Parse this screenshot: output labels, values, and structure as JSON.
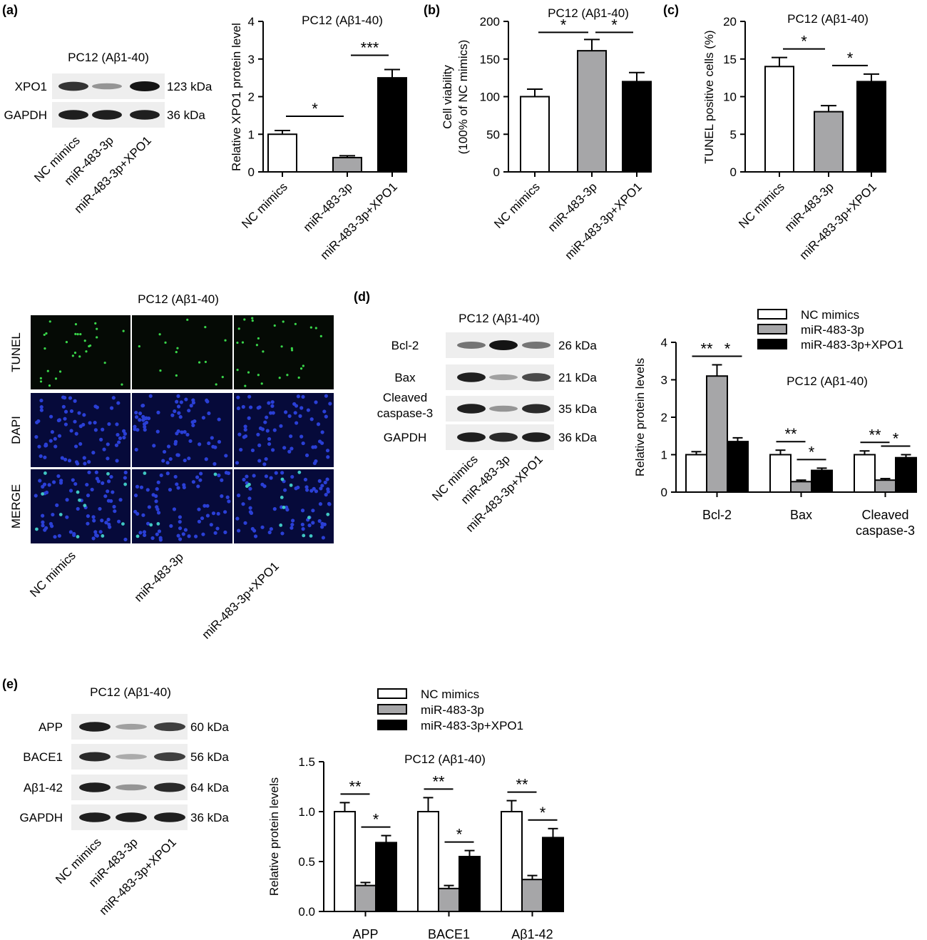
{
  "panels": {
    "a": "(a)",
    "b": "(b)",
    "c": "(c)",
    "d": "(d)",
    "e": "(e)"
  },
  "cell_line": "PC12 (Aβ1-40)",
  "groups": [
    "NC mimics",
    "miR-483-3p",
    "miR-483-3p+XPO1"
  ],
  "blot_a": {
    "rows": [
      {
        "label": "XPO1",
        "size": "123 kDa",
        "intensity": [
          0.85,
          0.4,
          1.0
        ]
      },
      {
        "label": "GAPDH",
        "size": "36 kDa",
        "intensity": [
          0.95,
          0.95,
          0.95
        ]
      }
    ]
  },
  "blot_d": {
    "rows": [
      {
        "label": "Bcl-2",
        "size": "26 kDa",
        "intensity": [
          0.55,
          1.0,
          0.55
        ]
      },
      {
        "label": "Bax",
        "size": "21 kDa",
        "intensity": [
          0.95,
          0.35,
          0.75
        ]
      },
      {
        "label": "Cleaved caspase-3",
        "label_lines": [
          "Cleaved",
          "caspase-3"
        ],
        "size": "35 kDa",
        "intensity": [
          0.95,
          0.4,
          0.9
        ]
      },
      {
        "label": "GAPDH",
        "size": "36 kDa",
        "intensity": [
          0.95,
          0.9,
          0.95
        ]
      }
    ]
  },
  "blot_e": {
    "rows": [
      {
        "label": "APP",
        "size": "60 kDa",
        "intensity": [
          0.95,
          0.35,
          0.8
        ]
      },
      {
        "label": "BACE1",
        "size": "56 kDa",
        "intensity": [
          0.9,
          0.3,
          0.8
        ]
      },
      {
        "label": "Aβ1-42",
        "size": "64 kDa",
        "intensity": [
          0.95,
          0.4,
          0.9
        ]
      },
      {
        "label": "GAPDH",
        "size": "36 kDa",
        "intensity": [
          0.95,
          0.95,
          0.95
        ]
      }
    ]
  },
  "microscopy": {
    "title": "PC12 (Aβ1-40)",
    "rows": [
      "TUNEL",
      "DAPI",
      "MERGE"
    ],
    "columns": [
      "NC mimics",
      "miR-483-3p",
      "miR-483-3p+XPO1"
    ]
  },
  "colors": {
    "nc": "#ffffff",
    "mir": "#a6a6a8",
    "xpo": "#000000"
  },
  "chart_data": [
    {
      "id": "a",
      "type": "bar",
      "title": "PC12 (Aβ1-40)",
      "ylabel": "Relative XPO1 protein level",
      "categories": [
        "NC mimics",
        "miR-483-3p",
        "miR-483-3p+XPO1"
      ],
      "values": [
        1.0,
        0.38,
        2.5
      ],
      "errors": [
        0.1,
        0.05,
        0.22
      ],
      "ylim": [
        0,
        4
      ],
      "yticks": [
        0,
        1,
        2,
        3,
        4
      ],
      "significance": [
        {
          "from": 0,
          "to": 1,
          "label": "*"
        },
        {
          "from": 1,
          "to": 2,
          "label": "***"
        }
      ]
    },
    {
      "id": "b",
      "type": "bar",
      "title": "PC12 (Aβ1-40)",
      "ylabel_lines": [
        "Cell viability",
        "(100% of NC mimics)"
      ],
      "categories": [
        "NC mimics",
        "miR-483-3p",
        "miR-483-3p+XPO1"
      ],
      "values": [
        100,
        161,
        120
      ],
      "errors": [
        10,
        15,
        12
      ],
      "ylim": [
        0,
        200
      ],
      "yticks": [
        0,
        50,
        100,
        150,
        200
      ],
      "significance": [
        {
          "from": 0,
          "to": 1,
          "label": "*"
        },
        {
          "from": 1,
          "to": 2,
          "label": "*"
        }
      ]
    },
    {
      "id": "c",
      "type": "bar",
      "title": "PC12 (Aβ1-40)",
      "ylabel": "TUNEL positive cells (%)",
      "categories": [
        "NC mimics",
        "miR-483-3p",
        "miR-483-3p+XPO1"
      ],
      "values": [
        14,
        8,
        12
      ],
      "errors": [
        1.2,
        0.8,
        1.0
      ],
      "ylim": [
        0,
        20
      ],
      "yticks": [
        0,
        5,
        10,
        15,
        20
      ],
      "significance": [
        {
          "from": 0,
          "to": 1,
          "label": "*"
        },
        {
          "from": 1,
          "to": 2,
          "label": "*"
        }
      ]
    },
    {
      "id": "d",
      "type": "bar",
      "title": "PC12 (Aβ1-40)",
      "ylabel": "Relative protein levels",
      "categories": [
        "Bcl-2",
        "Bax",
        "Cleaved caspase-3"
      ],
      "category_lines": [
        [
          "Bcl-2"
        ],
        [
          "Bax"
        ],
        [
          "Cleaved",
          "caspase-3"
        ]
      ],
      "series": [
        {
          "name": "NC mimics",
          "values": [
            1.0,
            1.0,
            1.0
          ],
          "errors": [
            0.08,
            0.12,
            0.1
          ]
        },
        {
          "name": "miR-483-3p",
          "values": [
            3.1,
            0.28,
            0.32
          ],
          "errors": [
            0.3,
            0.04,
            0.04
          ]
        },
        {
          "name": "miR-483-3p+XPO1",
          "values": [
            1.35,
            0.58,
            0.92
          ],
          "errors": [
            0.1,
            0.06,
            0.08
          ]
        }
      ],
      "ylim": [
        0,
        4
      ],
      "yticks": [
        0,
        1,
        2,
        3,
        4
      ],
      "significance": [
        {
          "cat": 0,
          "from": 0,
          "to": 1,
          "label": "**"
        },
        {
          "cat": 0,
          "from": 1,
          "to": 2,
          "label": "*"
        },
        {
          "cat": 1,
          "from": 0,
          "to": 1,
          "label": "**"
        },
        {
          "cat": 1,
          "from": 1,
          "to": 2,
          "label": "*"
        },
        {
          "cat": 2,
          "from": 0,
          "to": 1,
          "label": "**"
        },
        {
          "cat": 2,
          "from": 1,
          "to": 2,
          "label": "*"
        }
      ],
      "legend": "top-right"
    },
    {
      "id": "e",
      "type": "bar",
      "title": "PC12 (Aβ1-40)",
      "ylabel": "Relative protein levels",
      "categories": [
        "APP",
        "BACE1",
        "Aβ1-42"
      ],
      "category_lines": [
        [
          "APP"
        ],
        [
          "BACE1"
        ],
        [
          "Aβ1-42"
        ]
      ],
      "series": [
        {
          "name": "NC mimics",
          "values": [
            1.0,
            1.0,
            1.0
          ],
          "errors": [
            0.09,
            0.14,
            0.11
          ]
        },
        {
          "name": "miR-483-3p",
          "values": [
            0.26,
            0.23,
            0.32
          ],
          "errors": [
            0.03,
            0.03,
            0.04
          ]
        },
        {
          "name": "miR-483-3p+XPO1",
          "values": [
            0.69,
            0.55,
            0.74
          ],
          "errors": [
            0.07,
            0.06,
            0.09
          ]
        }
      ],
      "ylim": [
        0,
        1.5
      ],
      "yticks": [
        0.0,
        0.5,
        1.0,
        1.5
      ],
      "ytick_labels": [
        "0.0",
        "0.5",
        "1.0",
        "1.5"
      ],
      "significance": [
        {
          "cat": 0,
          "from": 0,
          "to": 1,
          "label": "**"
        },
        {
          "cat": 0,
          "from": 1,
          "to": 2,
          "label": "*"
        },
        {
          "cat": 1,
          "from": 0,
          "to": 1,
          "label": "**"
        },
        {
          "cat": 1,
          "from": 1,
          "to": 2,
          "label": "*"
        },
        {
          "cat": 2,
          "from": 0,
          "to": 1,
          "label": "**"
        },
        {
          "cat": 2,
          "from": 1,
          "to": 2,
          "label": "*"
        }
      ],
      "legend": "top"
    }
  ]
}
